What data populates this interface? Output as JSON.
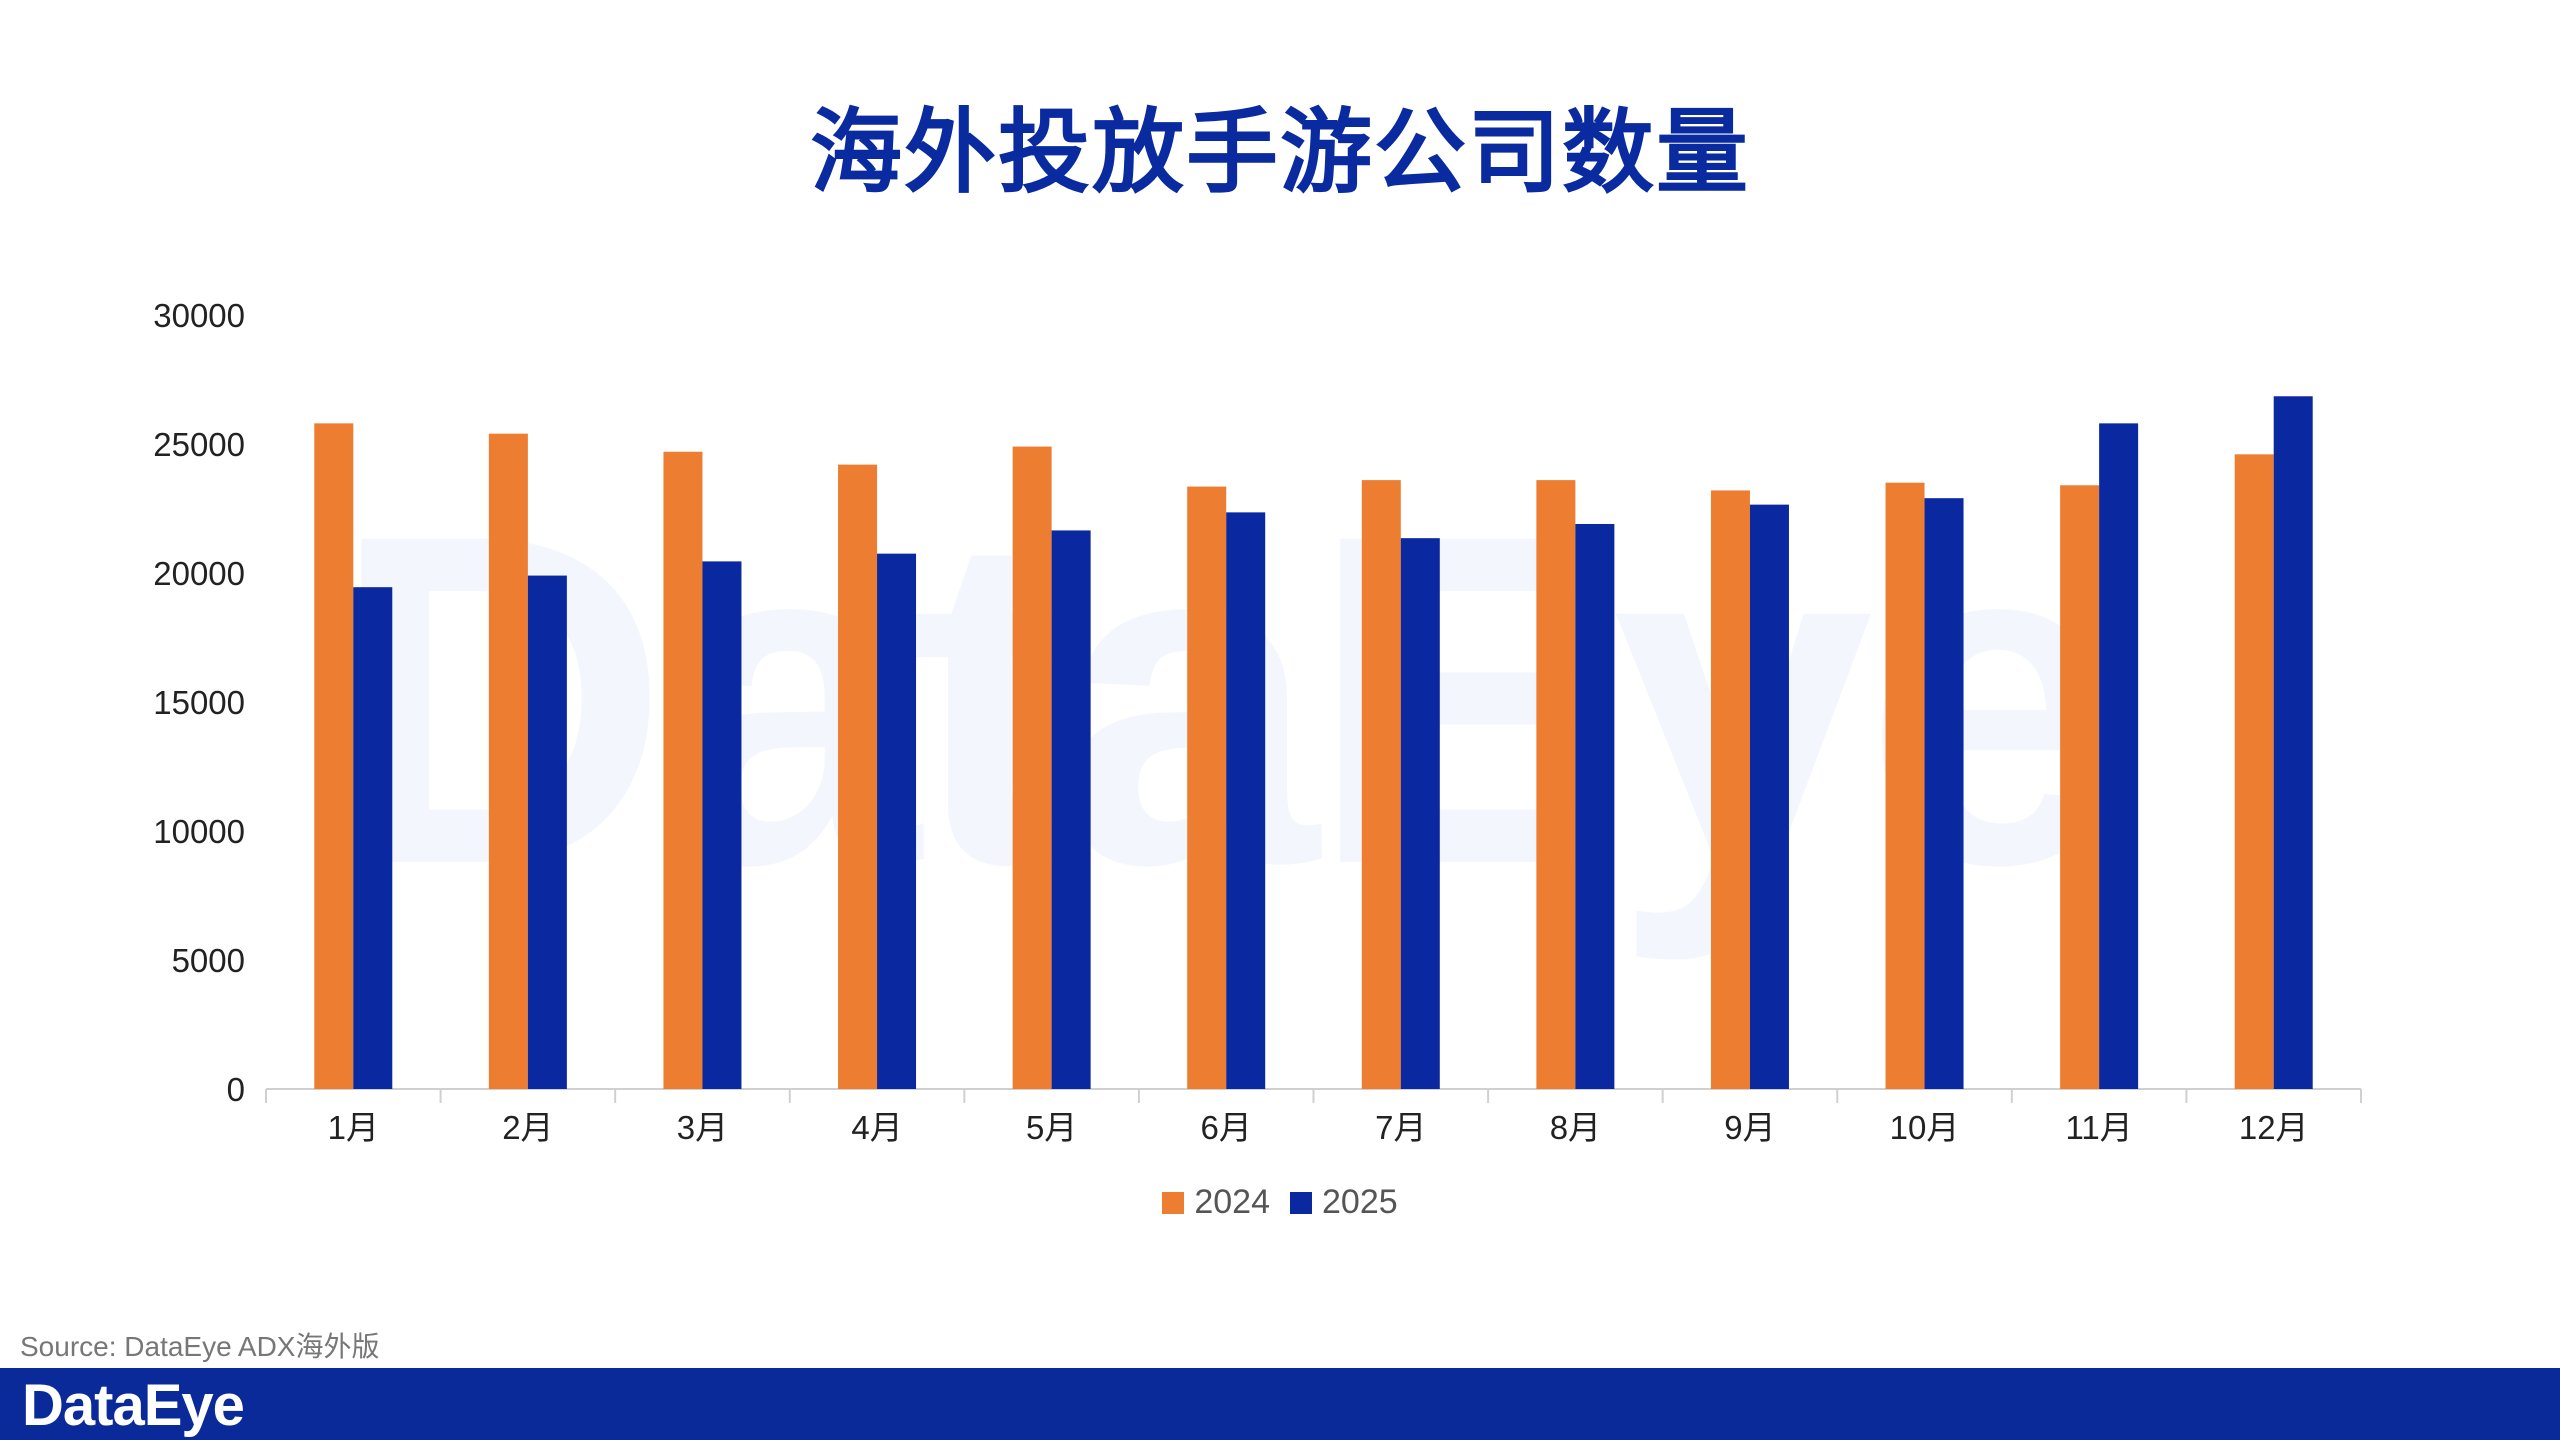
{
  "chart_data": {
    "type": "bar",
    "title": "海外投放手游公司数量",
    "categories": [
      "1月",
      "2月",
      "3月",
      "4月",
      "5月",
      "6月",
      "7月",
      "8月",
      "9月",
      "10月",
      "11月",
      "12月"
    ],
    "series": [
      {
        "name": "2024",
        "color": "#ED7D31",
        "values": [
          25800,
          25400,
          24700,
          24200,
          24900,
          23350,
          23600,
          23600,
          23200,
          23500,
          23400,
          24600
        ]
      },
      {
        "name": "2025",
        "color": "#0A28A0",
        "values": [
          19450,
          19900,
          20450,
          20750,
          21650,
          22350,
          21350,
          21900,
          22650,
          22900,
          25800,
          26850
        ]
      }
    ],
    "yticks": [
      "0",
      "5000",
      "10000",
      "15000",
      "20000",
      "25000",
      "30000"
    ],
    "ylim": [
      0,
      30000
    ],
    "xlabel": "",
    "ylabel": "",
    "legend": "bottom-center",
    "grid": false
  },
  "watermark": "DataEye",
  "source": "Source: DataEye ADX海外版",
  "footer": {
    "logo": "DataEye"
  }
}
